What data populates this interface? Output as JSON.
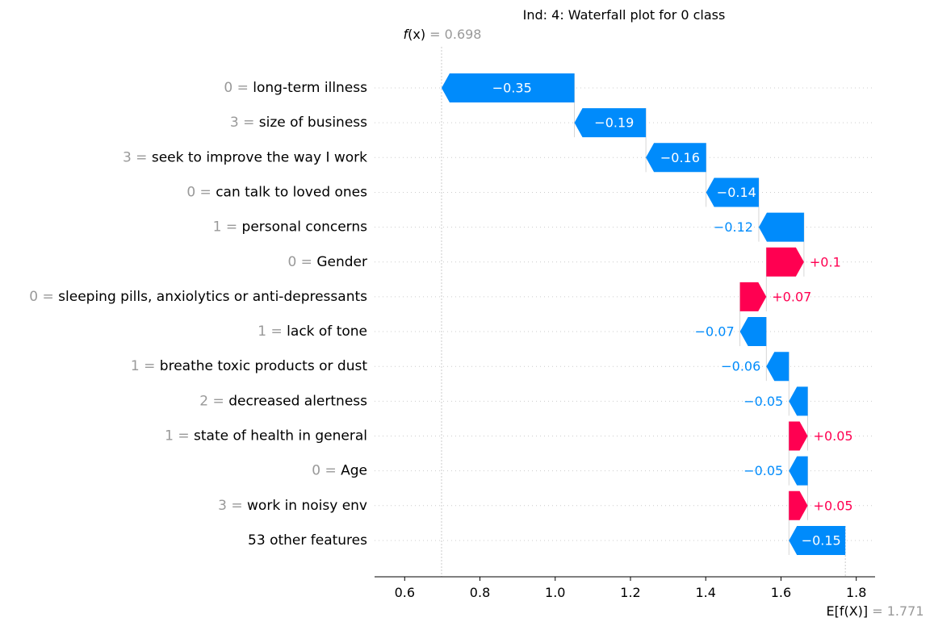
{
  "chart_data": {
    "type": "waterfall",
    "title": "Ind: 4: Waterfall plot for 0 class",
    "fx": {
      "label_prefix": "f",
      "label_var": "(x)",
      "eq": " = ",
      "value": 0.698,
      "value_text": "0.698"
    },
    "base": {
      "label": "E[f(X)]",
      "eq": " = ",
      "value": 1.771,
      "value_text": "1.771"
    },
    "xlim": [
      0.52,
      1.85
    ],
    "xticks": [
      0.6,
      0.8,
      1.0,
      1.2,
      1.4,
      1.6,
      1.8
    ],
    "xtick_labels": [
      "0.6",
      "0.8",
      "1.0",
      "1.2",
      "1.4",
      "1.6",
      "1.8"
    ],
    "features": [
      {
        "value_label": "0",
        "name": "long-term illness",
        "contribution": -0.35,
        "label": "−0.35"
      },
      {
        "value_label": "3",
        "name": "size of business",
        "contribution": -0.19,
        "label": "−0.19"
      },
      {
        "value_label": "3",
        "name": "seek to improve the way I work",
        "contribution": -0.16,
        "label": "−0.16"
      },
      {
        "value_label": "0",
        "name": "can talk to loved ones",
        "contribution": -0.14,
        "label": "−0.14"
      },
      {
        "value_label": "1",
        "name": "personal concerns",
        "contribution": -0.12,
        "label": "−0.12"
      },
      {
        "value_label": "0",
        "name": "Gender",
        "contribution": 0.1,
        "label": "+0.1"
      },
      {
        "value_label": "0",
        "name": "sleeping pills, anxiolytics or anti-depressants",
        "contribution": 0.07,
        "label": "+0.07"
      },
      {
        "value_label": "1",
        "name": "lack of tone",
        "contribution": -0.07,
        "label": "−0.07"
      },
      {
        "value_label": "1",
        "name": "breathe toxic products or dust",
        "contribution": -0.06,
        "label": "−0.06"
      },
      {
        "value_label": "2",
        "name": "decreased alertness",
        "contribution": -0.05,
        "label": "−0.05"
      },
      {
        "value_label": "1",
        "name": "state of health in general",
        "contribution": 0.05,
        "label": "+0.05"
      },
      {
        "value_label": "0",
        "name": "Age",
        "contribution": -0.05,
        "label": "−0.05"
      },
      {
        "value_label": "3",
        "name": "work in noisy env",
        "contribution": 0.05,
        "label": "+0.05"
      },
      {
        "value_label": "",
        "name": "53 other features",
        "contribution": -0.15,
        "label": "−0.15"
      }
    ],
    "colors": {
      "positive": "#ff0051",
      "negative": "#008bfb",
      "muted": "#999999",
      "text": "#000000"
    }
  }
}
